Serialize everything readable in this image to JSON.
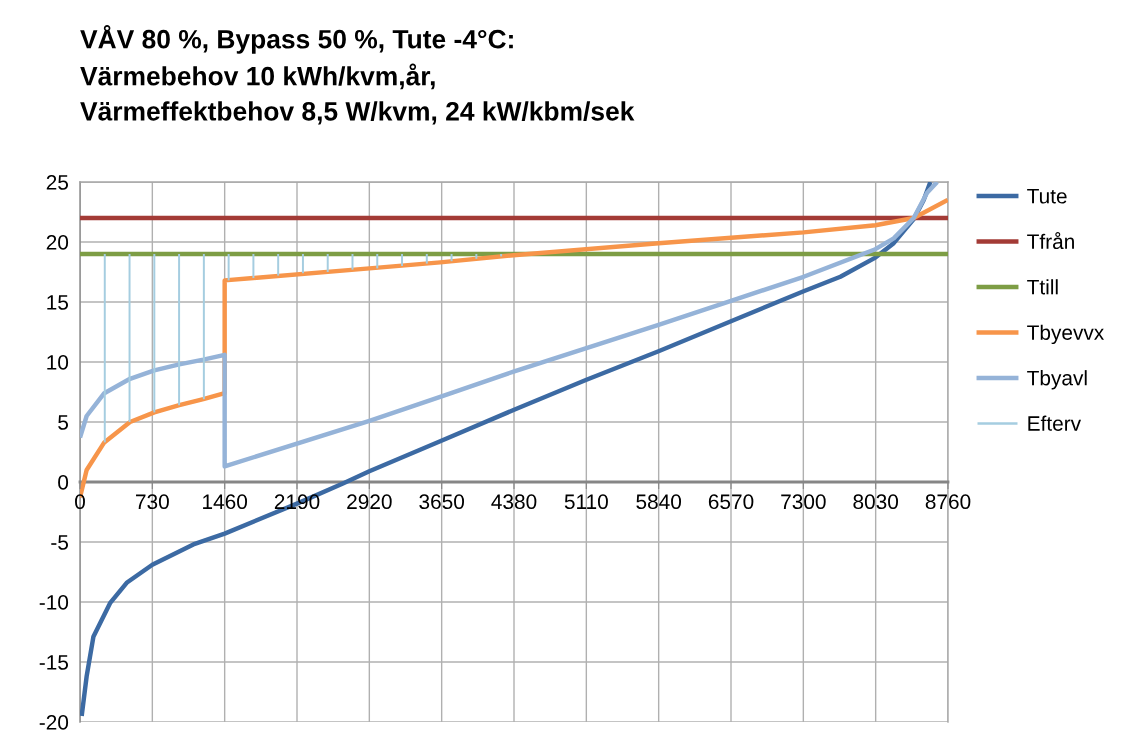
{
  "chart_data": {
    "type": "line",
    "title": "VÅV 80 %, Bypass 50 %, Tute -4°C:\nVärmebehov 10 kWh/kvm,år,\nVärmeffektbehov 8,5 W/kvm, 24 kW/kbm/sek",
    "xlim": [
      0,
      8760
    ],
    "xticks": [
      0,
      730,
      1460,
      2190,
      2920,
      3650,
      4380,
      5110,
      5840,
      6570,
      7300,
      8030,
      8760
    ],
    "ylim": [
      -20,
      25
    ],
    "yticks": [
      -20,
      -15,
      -10,
      -5,
      0,
      5,
      10,
      15,
      20,
      25
    ],
    "grid": true,
    "legend": "right",
    "line_style": "solid",
    "marker": "none",
    "series": [
      {
        "name": "Tute",
        "color": "#3c6aa3",
        "x": [
          17,
          67,
          135,
          303,
          471,
          730,
          1144,
          1460,
          2190,
          2659,
          2920,
          3635,
          4375,
          5105,
          5839,
          6570,
          7303,
          7674,
          8027,
          8212,
          8414,
          8515,
          8582
        ],
        "values": [
          -19.5,
          -16.2,
          -12.9,
          -10.1,
          -8.4,
          -6.9,
          -5.2,
          -4.3,
          -1.8,
          -0.1,
          0.9,
          3.4,
          6.0,
          8.5,
          10.9,
          13.4,
          15.9,
          17.1,
          18.7,
          19.9,
          21.9,
          23.5,
          25
        ]
      },
      {
        "name": "Tfrån",
        "color": "#a33b36",
        "x": [
          0,
          8760
        ],
        "values": [
          22,
          22
        ]
      },
      {
        "name": "Ttill",
        "color": "#7d9d45",
        "x": [
          0,
          8760
        ],
        "values": [
          19,
          19
        ]
      },
      {
        "name": "Tbyevvx",
        "color": "#f7954a",
        "x": [
          0,
          67,
          245,
          505,
          750,
          1002,
          1245,
          1460,
          1460,
          1750,
          2921,
          3635,
          4375,
          5839,
          7303,
          8027,
          8414,
          8757
        ],
        "values": [
          -1.3,
          1.0,
          3.3,
          5.0,
          5.8,
          6.4,
          6.9,
          7.4,
          16.8,
          17.0,
          17.8,
          18.3,
          18.9,
          19.9,
          20.8,
          21.4,
          22.0,
          23.5
        ]
      },
      {
        "name": "Tbyavl",
        "color": "#95b3d8",
        "x": [
          0,
          67,
          245,
          505,
          750,
          1002,
          1245,
          1460,
          1460,
          2921,
          3635,
          4375,
          5839,
          6570,
          7303,
          8027,
          8212,
          8414,
          8549,
          8651
        ],
        "values": [
          3.7,
          5.5,
          7.4,
          8.6,
          9.3,
          9.8,
          10.2,
          10.6,
          1.3,
          5.1,
          7.1,
          9.2,
          13.1,
          15.1,
          17.1,
          19.4,
          20.3,
          22.0,
          24.1,
          25
        ]
      },
      {
        "name": "Efterv",
        "type": "bar",
        "color": "#a5cde0",
        "x": [
          250,
          500,
          750,
          1000,
          1250,
          1500,
          1750,
          2000,
          2250,
          2500,
          2750,
          3000,
          3250,
          3500,
          3750,
          4000,
          4250
        ],
        "base": [
          3.3,
          5.0,
          5.8,
          6.4,
          6.9,
          16.8,
          17.0,
          17.2,
          17.4,
          17.5,
          17.7,
          17.8,
          18.0,
          18.2,
          18.4,
          18.6,
          18.8
        ],
        "values": [
          15.7,
          14.0,
          13.2,
          12.6,
          12.1,
          2.2,
          2.0,
          1.8,
          1.6,
          1.5,
          1.3,
          1.2,
          1.0,
          0.8,
          0.6,
          0.4,
          0.2
        ]
      }
    ]
  }
}
